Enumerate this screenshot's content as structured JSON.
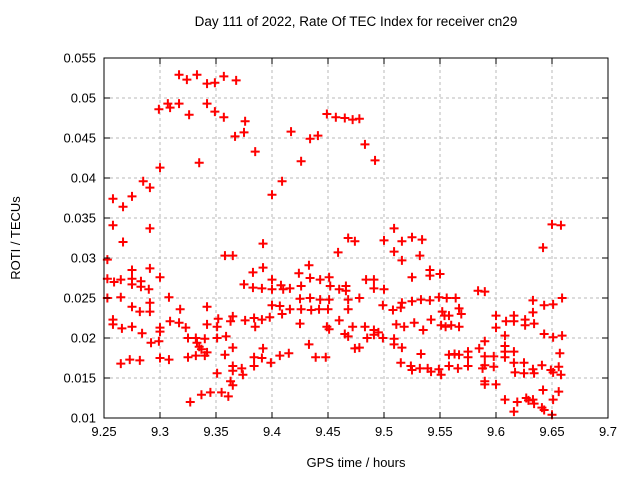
{
  "title": "Day 111 of 2022, Rate Of TEC Index for receiver cn29",
  "chart_data": {
    "type": "scatter",
    "title": "Day 111 of 2022, Rate Of TEC Index for receiver cn29",
    "xlabel": "GPS time / hours",
    "ylabel": "ROTI / TECUs",
    "xlim": [
      9.25,
      9.7
    ],
    "ylim": [
      0.01,
      0.055
    ],
    "grid": true,
    "legend_position": "none",
    "grid_color": "#b8b8b8",
    "border_color": "#000000",
    "marker": {
      "shape": "plus",
      "color": "#ff0000",
      "size": 9,
      "stroke_width": 2
    },
    "xticks": [
      {
        "v": 9.25,
        "label": "9.25"
      },
      {
        "v": 9.3,
        "label": "9.3"
      },
      {
        "v": 9.35,
        "label": "9.35"
      },
      {
        "v": 9.4,
        "label": "9.4"
      },
      {
        "v": 9.45,
        "label": "9.45"
      },
      {
        "v": 9.5,
        "label": "9.5"
      },
      {
        "v": 9.55,
        "label": "9.55"
      },
      {
        "v": 9.6,
        "label": "9.6"
      },
      {
        "v": 9.65,
        "label": "9.65"
      },
      {
        "v": 9.7,
        "label": "9.7"
      }
    ],
    "yticks": [
      {
        "v": 0.055,
        "label": "0.055"
      },
      {
        "v": 0.05,
        "label": "0.05"
      },
      {
        "v": 0.045,
        "label": "0.045"
      },
      {
        "v": 0.04,
        "label": "0.04"
      },
      {
        "v": 0.035,
        "label": "0.035"
      },
      {
        "v": 0.03,
        "label": "0.03"
      },
      {
        "v": 0.025,
        "label": "0.025"
      },
      {
        "v": 0.02,
        "label": "0.02"
      },
      {
        "v": 0.015,
        "label": "0.015"
      },
      {
        "v": 0.01,
        "label": "0.01"
      }
    ],
    "points": [
      [
        9.317,
        0.0529
      ],
      [
        9.324,
        0.0523
      ],
      [
        9.333,
        0.0529
      ],
      [
        9.342,
        0.0518
      ],
      [
        9.349,
        0.0519
      ],
      [
        9.357,
        0.0527
      ],
      [
        9.368,
        0.0522
      ],
      [
        9.299,
        0.0486
      ],
      [
        9.307,
        0.0493
      ],
      [
        9.309,
        0.0488
      ],
      [
        9.317,
        0.0493
      ],
      [
        9.326,
        0.0479
      ],
      [
        9.342,
        0.0493
      ],
      [
        9.349,
        0.0483
      ],
      [
        9.357,
        0.0476
      ],
      [
        9.376,
        0.0471
      ],
      [
        9.367,
        0.0452
      ],
      [
        9.375,
        0.0457
      ],
      [
        9.385,
        0.0433
      ],
      [
        9.417,
        0.0458
      ],
      [
        9.426,
        0.0421
      ],
      [
        9.434,
        0.0449
      ],
      [
        9.441,
        0.0453
      ],
      [
        9.449,
        0.048
      ],
      [
        9.457,
        0.0476
      ],
      [
        9.465,
        0.0475
      ],
      [
        9.472,
        0.0473
      ],
      [
        9.478,
        0.0474
      ],
      [
        9.483,
        0.0442
      ],
      [
        9.492,
        0.0422
      ],
      [
        9.3,
        0.0413
      ],
      [
        9.335,
        0.0419
      ],
      [
        9.285,
        0.0396
      ],
      [
        9.291,
        0.0388
      ],
      [
        9.409,
        0.0396
      ],
      [
        9.4,
        0.0379
      ],
      [
        9.258,
        0.0374
      ],
      [
        9.275,
        0.0377
      ],
      [
        9.267,
        0.0364
      ],
      [
        9.258,
        0.0341
      ],
      [
        9.291,
        0.0337
      ],
      [
        9.267,
        0.032
      ],
      [
        9.392,
        0.0318
      ],
      [
        9.358,
        0.0303
      ],
      [
        9.365,
        0.0303
      ],
      [
        9.253,
        0.0298
      ],
      [
        9.468,
        0.0325
      ],
      [
        9.474,
        0.0321
      ],
      [
        9.459,
        0.0307
      ],
      [
        9.509,
        0.0337
      ],
      [
        9.5,
        0.0322
      ],
      [
        9.516,
        0.0321
      ],
      [
        9.525,
        0.0326
      ],
      [
        9.534,
        0.0323
      ],
      [
        9.509,
        0.0308
      ],
      [
        9.532,
        0.0303
      ],
      [
        9.65,
        0.0342
      ],
      [
        9.658,
        0.0341
      ],
      [
        9.642,
        0.0313
      ],
      [
        9.275,
        0.0285
      ],
      [
        9.291,
        0.0287
      ],
      [
        9.253,
        0.0274
      ],
      [
        9.265,
        0.0273
      ],
      [
        9.275,
        0.0274
      ],
      [
        9.275,
        0.0267
      ],
      [
        9.283,
        0.0271
      ],
      [
        9.283,
        0.0264
      ],
      [
        9.3,
        0.0276
      ],
      [
        9.29,
        0.0261
      ],
      [
        9.259,
        0.027
      ],
      [
        9.392,
        0.0288
      ],
      [
        9.383,
        0.0282
      ],
      [
        9.433,
        0.0291
      ],
      [
        9.424,
        0.0281
      ],
      [
        9.375,
        0.0267
      ],
      [
        9.383,
        0.0263
      ],
      [
        9.4,
        0.0273
      ],
      [
        9.434,
        0.0275
      ],
      [
        9.443,
        0.0273
      ],
      [
        9.451,
        0.0276
      ],
      [
        9.391,
        0.0262
      ],
      [
        9.4,
        0.0261
      ],
      [
        9.408,
        0.0266
      ],
      [
        9.41,
        0.0261
      ],
      [
        9.416,
        0.0262
      ],
      [
        9.426,
        0.0265
      ],
      [
        9.452,
        0.0265
      ],
      [
        9.46,
        0.0261
      ],
      [
        9.466,
        0.0265
      ],
      [
        9.466,
        0.0259
      ],
      [
        9.516,
        0.0297
      ],
      [
        9.541,
        0.0285
      ],
      [
        9.541,
        0.0278
      ],
      [
        9.55,
        0.028
      ],
      [
        9.525,
        0.0276
      ],
      [
        9.484,
        0.0273
      ],
      [
        9.491,
        0.0273
      ],
      [
        9.491,
        0.0262
      ],
      [
        9.5,
        0.0261
      ],
      [
        9.584,
        0.0259
      ],
      [
        9.59,
        0.0258
      ],
      [
        9.253,
        0.025
      ],
      [
        9.265,
        0.0251
      ],
      [
        9.275,
        0.0239
      ],
      [
        9.282,
        0.0233
      ],
      [
        9.291,
        0.0244
      ],
      [
        9.291,
        0.0233
      ],
      [
        9.308,
        0.0251
      ],
      [
        9.318,
        0.0236
      ],
      [
        9.258,
        0.0223
      ],
      [
        9.258,
        0.0217
      ],
      [
        9.266,
        0.0212
      ],
      [
        9.275,
        0.0214
      ],
      [
        9.284,
        0.0206
      ],
      [
        9.3,
        0.0213
      ],
      [
        9.3,
        0.0208
      ],
      [
        9.309,
        0.0221
      ],
      [
        9.317,
        0.0219
      ],
      [
        9.323,
        0.0213
      ],
      [
        9.342,
        0.0217
      ],
      [
        9.351,
        0.0214
      ],
      [
        9.342,
        0.0239
      ],
      [
        9.352,
        0.0224
      ],
      [
        9.363,
        0.0221
      ],
      [
        9.359,
        0.0202
      ],
      [
        9.351,
        0.02
      ],
      [
        9.325,
        0.02
      ],
      [
        9.332,
        0.02
      ],
      [
        9.34,
        0.0199
      ],
      [
        9.365,
        0.0227
      ],
      [
        9.376,
        0.0222
      ],
      [
        9.384,
        0.0225
      ],
      [
        9.385,
        0.0214
      ],
      [
        9.391,
        0.0223
      ],
      [
        9.398,
        0.0226
      ],
      [
        9.4,
        0.0241
      ],
      [
        9.407,
        0.024
      ],
      [
        9.409,
        0.023
      ],
      [
        9.416,
        0.0236
      ],
      [
        9.425,
        0.0249
      ],
      [
        9.426,
        0.0236
      ],
      [
        9.425,
        0.0218
      ],
      [
        9.434,
        0.025
      ],
      [
        9.435,
        0.0235
      ],
      [
        9.442,
        0.0236
      ],
      [
        9.443,
        0.0248
      ],
      [
        9.45,
        0.0236
      ],
      [
        9.451,
        0.0248
      ],
      [
        9.46,
        0.0222
      ],
      [
        9.468,
        0.0248
      ],
      [
        9.468,
        0.0236
      ],
      [
        9.449,
        0.0214
      ],
      [
        9.451,
        0.0211
      ],
      [
        9.465,
        0.0205
      ],
      [
        9.472,
        0.0214
      ],
      [
        9.468,
        0.0202
      ],
      [
        9.478,
        0.025
      ],
      [
        9.499,
        0.0241
      ],
      [
        9.508,
        0.0235
      ],
      [
        9.515,
        0.0238
      ],
      [
        9.516,
        0.0244
      ],
      [
        9.525,
        0.0246
      ],
      [
        9.533,
        0.0248
      ],
      [
        9.541,
        0.0247
      ],
      [
        9.549,
        0.0251
      ],
      [
        9.556,
        0.025
      ],
      [
        9.564,
        0.025
      ],
      [
        9.567,
        0.0237
      ],
      [
        9.569,
        0.023
      ],
      [
        9.552,
        0.0233
      ],
      [
        9.554,
        0.0228
      ],
      [
        9.558,
        0.0228
      ],
      [
        9.551,
        0.0216
      ],
      [
        9.555,
        0.0214
      ],
      [
        9.56,
        0.0216
      ],
      [
        9.567,
        0.0214
      ],
      [
        9.542,
        0.0223
      ],
      [
        9.527,
        0.0219
      ],
      [
        9.535,
        0.021
      ],
      [
        9.511,
        0.0217
      ],
      [
        9.518,
        0.0214
      ],
      [
        9.483,
        0.0214
      ],
      [
        9.491,
        0.021
      ],
      [
        9.495,
        0.0207
      ],
      [
        9.491,
        0.0204
      ],
      [
        9.485,
        0.02
      ],
      [
        9.499,
        0.02
      ],
      [
        9.6,
        0.0228
      ],
      [
        9.6,
        0.0213
      ],
      [
        9.609,
        0.0221
      ],
      [
        9.616,
        0.0228
      ],
      [
        9.616,
        0.0221
      ],
      [
        9.626,
        0.0223
      ],
      [
        9.626,
        0.0216
      ],
      [
        9.633,
        0.0232
      ],
      [
        9.634,
        0.0218
      ],
      [
        9.633,
        0.0247
      ],
      [
        9.643,
        0.0241
      ],
      [
        9.651,
        0.0242
      ],
      [
        9.659,
        0.025
      ],
      [
        9.608,
        0.0203
      ],
      [
        9.643,
        0.0205
      ],
      [
        9.651,
        0.0201
      ],
      [
        9.659,
        0.0203
      ],
      [
        9.292,
        0.0194
      ],
      [
        9.299,
        0.0196
      ],
      [
        9.325,
        0.0176
      ],
      [
        9.332,
        0.0178
      ],
      [
        9.34,
        0.0178
      ],
      [
        9.3,
        0.0175
      ],
      [
        9.308,
        0.0173
      ],
      [
        9.265,
        0.0168
      ],
      [
        9.273,
        0.0173
      ],
      [
        9.282,
        0.0172
      ],
      [
        9.333,
        0.0194
      ],
      [
        9.335,
        0.0189
      ],
      [
        9.337,
        0.0186
      ],
      [
        9.342,
        0.0182
      ],
      [
        9.358,
        0.0179
      ],
      [
        9.351,
        0.0156
      ],
      [
        9.363,
        0.0146
      ],
      [
        9.365,
        0.0141
      ],
      [
        9.365,
        0.0188
      ],
      [
        9.392,
        0.0187
      ],
      [
        9.384,
        0.0176
      ],
      [
        9.391,
        0.0175
      ],
      [
        9.399,
        0.0169
      ],
      [
        9.407,
        0.0178
      ],
      [
        9.415,
        0.0181
      ],
      [
        9.433,
        0.0192
      ],
      [
        9.439,
        0.0176
      ],
      [
        9.448,
        0.0176
      ],
      [
        9.365,
        0.0165
      ],
      [
        9.373,
        0.0162
      ],
      [
        9.365,
        0.0159
      ],
      [
        9.374,
        0.0154
      ],
      [
        9.384,
        0.0165
      ],
      [
        9.474,
        0.0187
      ],
      [
        9.478,
        0.0188
      ],
      [
        9.509,
        0.0199
      ],
      [
        9.509,
        0.0192
      ],
      [
        9.516,
        0.0188
      ],
      [
        9.533,
        0.018
      ],
      [
        9.515,
        0.0169
      ],
      [
        9.524,
        0.0165
      ],
      [
        9.525,
        0.016
      ],
      [
        9.532,
        0.0162
      ],
      [
        9.539,
        0.0162
      ],
      [
        9.542,
        0.0158
      ],
      [
        9.549,
        0.0161
      ],
      [
        9.551,
        0.0154
      ],
      [
        9.558,
        0.0165
      ],
      [
        9.566,
        0.0162
      ],
      [
        9.558,
        0.0179
      ],
      [
        9.563,
        0.018
      ],
      [
        9.567,
        0.0179
      ],
      [
        9.575,
        0.0183
      ],
      [
        9.575,
        0.0176
      ],
      [
        9.575,
        0.0165
      ],
      [
        9.585,
        0.0187
      ],
      [
        9.588,
        0.0162
      ],
      [
        9.59,
        0.0196
      ],
      [
        9.608,
        0.019
      ],
      [
        9.59,
        0.0177
      ],
      [
        9.598,
        0.0177
      ],
      [
        9.608,
        0.0183
      ],
      [
        9.608,
        0.0176
      ],
      [
        9.616,
        0.0183
      ],
      [
        9.59,
        0.0166
      ],
      [
        9.598,
        0.0164
      ],
      [
        9.616,
        0.0169
      ],
      [
        9.625,
        0.0169
      ],
      [
        9.617,
        0.0157
      ],
      [
        9.625,
        0.0156
      ],
      [
        9.633,
        0.0161
      ],
      [
        9.634,
        0.0156
      ],
      [
        9.641,
        0.0166
      ],
      [
        9.649,
        0.016
      ],
      [
        9.651,
        0.0157
      ],
      [
        9.656,
        0.0164
      ],
      [
        9.658,
        0.0154
      ],
      [
        9.657,
        0.0181
      ],
      [
        9.327,
        0.012
      ],
      [
        9.337,
        0.0129
      ],
      [
        9.345,
        0.0132
      ],
      [
        9.355,
        0.0132
      ],
      [
        9.361,
        0.0127
      ],
      [
        9.59,
        0.0146
      ],
      [
        9.59,
        0.0142
      ],
      [
        9.6,
        0.0142
      ],
      [
        9.642,
        0.0135
      ],
      [
        9.656,
        0.0133
      ],
      [
        9.651,
        0.0123
      ],
      [
        9.608,
        0.0123
      ],
      [
        9.619,
        0.012
      ],
      [
        9.627,
        0.0125
      ],
      [
        9.629,
        0.0122
      ],
      [
        9.633,
        0.0123
      ],
      [
        9.634,
        0.0118
      ],
      [
        9.641,
        0.0113
      ],
      [
        9.616,
        0.0108
      ],
      [
        9.643,
        0.011
      ],
      [
        9.65,
        0.0104
      ]
    ]
  }
}
